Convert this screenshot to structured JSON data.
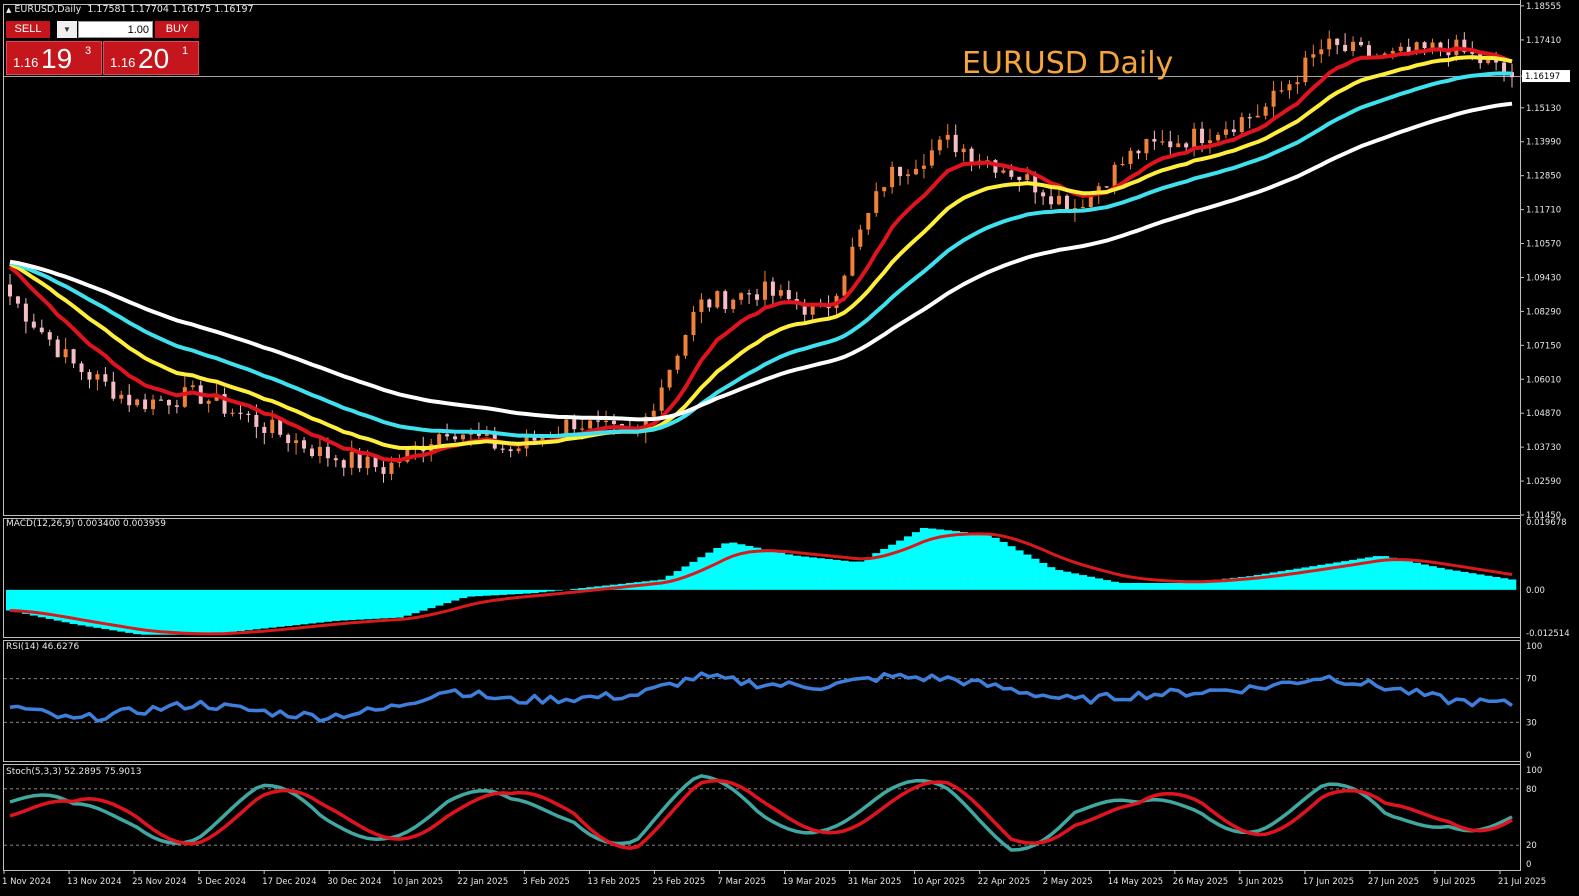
{
  "header": {
    "symbol_title": "EURUSD,Daily",
    "ohlc": "1.17581 1.17704 1.16175 1.16197",
    "chart_title": "EURUSD Daily"
  },
  "trade_panel": {
    "sell_label": "SELL",
    "buy_label": "BUY",
    "lot_value": "1.00",
    "sell_price": {
      "prefix": "1.16",
      "big": "19",
      "sup": "3"
    },
    "buy_price": {
      "prefix": "1.16",
      "big": "20",
      "sup": "1"
    }
  },
  "price_axis": {
    "labels": [
      "1.18555",
      "1.17410",
      "1.16197",
      "1.15130",
      "1.13990",
      "1.12850",
      "1.11710",
      "1.10570",
      "1.09430",
      "1.08290",
      "1.07150",
      "1.06010",
      "1.04870",
      "1.03730",
      "1.02590",
      "1.01450"
    ],
    "current_price": "1.16197"
  },
  "macd": {
    "label": "MACD(12,26,9) 0.003400 0.003959",
    "axis": [
      "0.019678",
      "0.00",
      "-0.012514"
    ]
  },
  "rsi": {
    "label": "RSI(14) 46.6276",
    "axis": [
      "100",
      "70",
      "30",
      "0"
    ]
  },
  "stoch": {
    "label": "Stoch(5,3,3) 52.2895 75.9013",
    "axis": [
      "100",
      "80",
      "20",
      "0"
    ]
  },
  "date_axis": [
    "1 Nov 2024",
    "13 Nov 2024",
    "25 Nov 2024",
    "5 Dec 2024",
    "17 Dec 2024",
    "30 Dec 2024",
    "10 Jan 2025",
    "22 Jan 2025",
    "3 Feb 2025",
    "13 Feb 2025",
    "25 Feb 2025",
    "7 Mar 2025",
    "19 Mar 2025",
    "31 Mar 2025",
    "10 Apr 2025",
    "22 Apr 2025",
    "2 May 2025",
    "14 May 2025",
    "26 May 2025",
    "5 Jun 2025",
    "17 Jun 2025",
    "27 Jun 2025",
    "9 Jul 2025",
    "21 Jul 2025"
  ],
  "colors": {
    "bull": "#f0813a",
    "bear": "#f5bdc4",
    "ma_fast": "#e0141e",
    "ma_mid": "#ffee3a",
    "ma_slow": "#3ee2ee",
    "ma_long": "#ffffff",
    "macd_hist": "#00ffff",
    "macd_signal": "#d81a1a",
    "rsi": "#3e7fdc",
    "stoch_main": "#40a8a0",
    "stoch_signal": "#e0141e"
  },
  "chart_data": {
    "type": "line",
    "x_dates": [
      "1 Nov 2024",
      "13 Nov 2024",
      "25 Nov 2024",
      "5 Dec 2024",
      "17 Dec 2024",
      "30 Dec 2024",
      "10 Jan 2025",
      "22 Jan 2025",
      "3 Feb 2025",
      "13 Feb 2025",
      "25 Feb 2025",
      "7 Mar 2025",
      "19 Mar 2025",
      "31 Mar 2025",
      "10 Apr 2025",
      "22 Apr 2025",
      "2 May 2025",
      "14 May 2025",
      "26 May 2025",
      "5 Jun 2025",
      "17 Jun 2025",
      "27 Jun 2025",
      "9 Jul 2025",
      "21 Jul 2025"
    ],
    "close_at_dates": [
      1.088,
      1.065,
      1.052,
      1.055,
      1.045,
      1.035,
      1.03,
      1.044,
      1.036,
      1.046,
      1.04,
      1.085,
      1.09,
      1.082,
      1.128,
      1.14,
      1.13,
      1.118,
      1.137,
      1.142,
      1.15,
      1.172,
      1.168,
      1.172,
      1.162
    ],
    "ylim": [
      1.0145,
      1.1855
    ],
    "macd_ylim": [
      -0.012514,
      0.019678
    ],
    "macd_hist": [
      -0.006,
      -0.01,
      -0.013,
      -0.013,
      -0.011,
      -0.009,
      -0.008,
      -0.002,
      -0.001,
      0.001,
      0.003,
      0.014,
      0.01,
      0.008,
      0.018,
      0.016,
      0.006,
      0.002,
      0.002,
      0.004,
      0.007,
      0.01,
      0.006,
      0.003
    ],
    "rsi_values": [
      45,
      32,
      40,
      47,
      40,
      35,
      42,
      60,
      50,
      52,
      55,
      72,
      65,
      63,
      72,
      70,
      60,
      50,
      55,
      58,
      62,
      72,
      62,
      50,
      46.6
    ],
    "stoch_main": [
      90,
      20,
      60,
      40,
      75,
      30,
      60,
      75,
      40,
      85,
      20,
      95,
      55,
      80,
      85,
      75,
      20,
      80,
      20,
      80,
      75,
      90,
      20,
      90,
      52.3
    ],
    "stoch_signal": [
      85,
      25,
      55,
      45,
      70,
      35,
      55,
      70,
      45,
      80,
      25,
      90,
      60,
      75,
      80,
      75,
      25,
      75,
      25,
      75,
      70,
      90,
      25,
      85,
      75.9
    ]
  }
}
